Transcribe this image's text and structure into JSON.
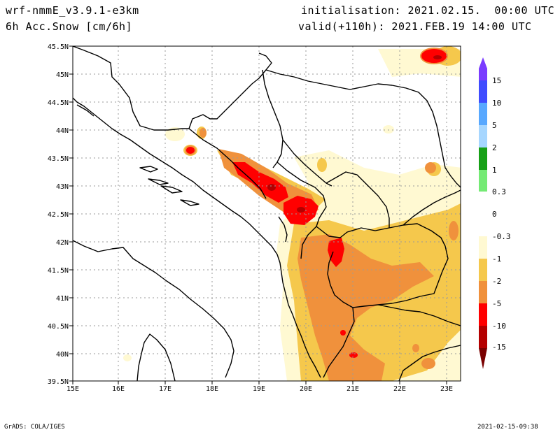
{
  "header": {
    "model": "wrf-nmmE_v3.9.1-e3km",
    "field": "6h Acc.Snow [cm/6h]",
    "init": "initialisation: 2021.02.15.  00:00 UTC",
    "valid": "valid(+110h): 2021.FEB.19 14:00 UTC"
  },
  "map": {
    "lon_labels": [
      "15E",
      "16E",
      "17E",
      "18E",
      "19E",
      "20E",
      "21E",
      "22E",
      "23E"
    ],
    "lat_labels": [
      "45.5N",
      "45N",
      "44.5N",
      "44N",
      "43.5N",
      "43N",
      "42.5N",
      "42N",
      "41.5N",
      "41N",
      "40.5N",
      "40N",
      "39.5N"
    ]
  },
  "colorbar": {
    "labels": [
      "15",
      "10",
      "5",
      "2",
      "1",
      "0.3",
      "0",
      "-0.3",
      "-1",
      "-2",
      "-5",
      "-10",
      "-15"
    ],
    "colors": [
      "#7a3cff",
      "#3f4cff",
      "#58a8ff",
      "#a6d6ff",
      "#16a016",
      "#74ea74",
      "#ffffff",
      "#fff9d2",
      "#f5c84c",
      "#f0913c",
      "#ff0000",
      "#b40000",
      "#7a0000"
    ]
  },
  "footer": {
    "left": "GrADS: COLA/IGES",
    "right": "2021-02-15-09:38"
  }
}
